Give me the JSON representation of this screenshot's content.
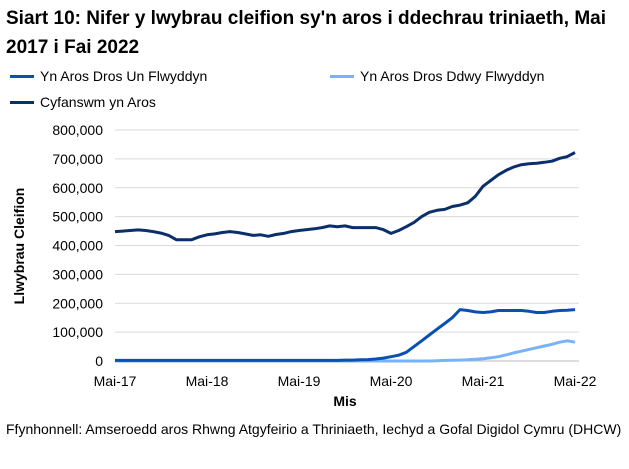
{
  "chart_data": {
    "type": "line",
    "title": "Siart 10: Nifer y lwybrau cleifion sy'n aros i ddechrau triniaeth, Mai 2017 i Fai 2022",
    "xlabel": "Mis",
    "ylabel": "Llwybrau Cleifion",
    "ylim": [
      0,
      800000
    ],
    "yticks": [
      "0",
      "100,000",
      "200,000",
      "300,000",
      "400,000",
      "500,000",
      "600,000",
      "700,000",
      "800,000"
    ],
    "xticks": [
      "Mai-17",
      "Mai-18",
      "Mai-19",
      "Mai-20",
      "Mai-21",
      "Mai-22"
    ],
    "grid": true,
    "legend": "top",
    "series": [
      {
        "name": "Yn Aros Dros Un Flwyddyn",
        "color": "#0a4fb4",
        "values": [
          2000,
          2000,
          2000,
          2000,
          2000,
          2000,
          2000,
          2000,
          2000,
          2000,
          2000,
          2000,
          2000,
          2000,
          2000,
          2000,
          2000,
          2000,
          2000,
          2000,
          2000,
          2000,
          2000,
          2000,
          2000,
          2000,
          2000,
          2000,
          2000,
          2000,
          3000,
          3000,
          4000,
          5000,
          7000,
          10000,
          15000,
          20000,
          30000,
          50000,
          70000,
          90000,
          110000,
          130000,
          150000,
          178000,
          175000,
          170000,
          168000,
          170000,
          175000,
          175000,
          175000,
          175000,
          172000,
          168000,
          168000,
          172000,
          175000,
          176000,
          178000
        ]
      },
      {
        "name": "Yn Aros Dros Ddwy Flwyddyn",
        "color": "#78b3fa",
        "values": [
          0,
          0,
          0,
          0,
          0,
          0,
          0,
          0,
          0,
          0,
          0,
          0,
          0,
          0,
          0,
          0,
          0,
          0,
          0,
          0,
          0,
          0,
          0,
          0,
          0,
          0,
          0,
          0,
          0,
          0,
          0,
          0,
          0,
          0,
          0,
          0,
          0,
          0,
          0,
          0,
          0,
          0,
          1000,
          2000,
          2500,
          3000,
          4000,
          6000,
          8000,
          11000,
          15000,
          21000,
          28000,
          34000,
          40000,
          46000,
          52000,
          58000,
          65000,
          70000,
          65000
        ]
      },
      {
        "name": "Cyfanswm yn Aros",
        "color": "#0b2f6b",
        "values": [
          448,
          450,
          452,
          454,
          452,
          448,
          443,
          435,
          420,
          420,
          420,
          430,
          437,
          440,
          445,
          448,
          445,
          440,
          435,
          437,
          432,
          438,
          442,
          448,
          452,
          455,
          458,
          462,
          468,
          465,
          468,
          462,
          462,
          462,
          462,
          455,
          442,
          452,
          465,
          480,
          500,
          515,
          522,
          525,
          535,
          540,
          548,
          570,
          605,
          625,
          645,
          660,
          672,
          680,
          683,
          685,
          688,
          692,
          702,
          708,
          722
        ]
      }
    ]
  },
  "source": "Ffynhonnell: Amseroedd aros Rhwng Atgyfeirio a Thriniaeth, Iechyd a Gofal Digidol Cymru (DHCW)"
}
